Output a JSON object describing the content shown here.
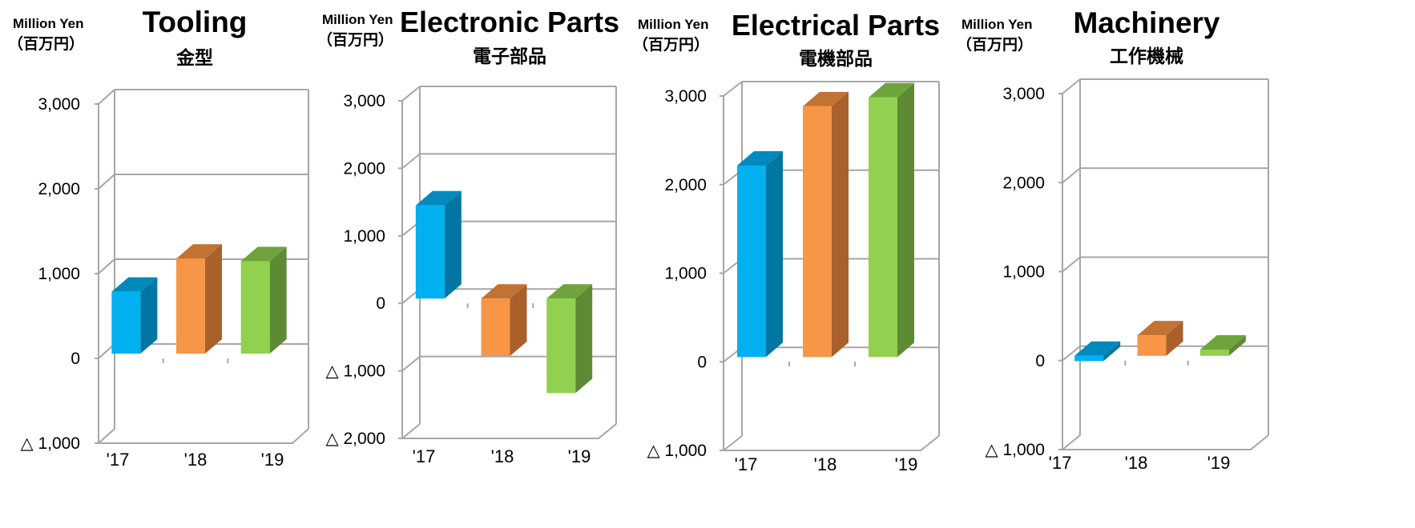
{
  "unit_label": {
    "en": "Million Yen",
    "ja": "（百万円）"
  },
  "colors": {
    "year17": {
      "front": "#00b0f0",
      "side": "#0077a3",
      "top": "#0089bd"
    },
    "year18": {
      "front": "#f79646",
      "side": "#a9602a",
      "top": "#c27334"
    },
    "year19": {
      "front": "#92d050",
      "side": "#5e8a33",
      "top": "#6fa43c"
    },
    "grid": "#a6a6a6"
  },
  "chart_data": [
    {
      "type": "bar",
      "title": "Tooling",
      "subtitle": "金型",
      "categories": [
        "'17",
        "'18",
        "'19"
      ],
      "values": [
        730,
        1120,
        1090
      ],
      "ylim": [
        -1000,
        3000
      ],
      "ticks": [
        3000,
        2000,
        1000,
        0,
        -1000
      ],
      "tick_labels": [
        "3,000",
        "2,000",
        "1,000",
        "0",
        "△ 1,000"
      ],
      "grid": true
    },
    {
      "type": "bar",
      "title": "Electronic Parts",
      "subtitle": "電子部品",
      "categories": [
        "'17",
        "'18",
        "'19"
      ],
      "values": [
        1380,
        -850,
        -1400
      ],
      "ylim": [
        -2000,
        3000
      ],
      "ticks": [
        3000,
        2000,
        1000,
        0,
        -1000,
        -2000
      ],
      "tick_labels": [
        "3,000",
        "2,000",
        "1,000",
        "0",
        "△ 1,000",
        "△ 2,000"
      ],
      "grid": true
    },
    {
      "type": "bar",
      "title": "Electrical Parts",
      "subtitle": "電機部品",
      "categories": [
        "'17",
        "'18",
        "'19"
      ],
      "values": [
        2160,
        2830,
        2930
      ],
      "ylim": [
        -1000,
        3000
      ],
      "ticks": [
        3000,
        2000,
        1000,
        0,
        -1000
      ],
      "tick_labels": [
        "3,000",
        "2,000",
        "1,000",
        "0",
        "△ 1,000"
      ],
      "grid": true
    },
    {
      "type": "bar",
      "title": "Machinery",
      "subtitle": "工作機械",
      "categories": [
        "'17",
        "'18",
        "'19"
      ],
      "values": [
        -60,
        230,
        70
      ],
      "ylim": [
        -1000,
        3000
      ],
      "ticks": [
        3000,
        2000,
        1000,
        0,
        -1000
      ],
      "tick_labels": [
        "3,000",
        "2,000",
        "1,000",
        "0",
        "△ 1,000"
      ],
      "grid": true
    }
  ]
}
